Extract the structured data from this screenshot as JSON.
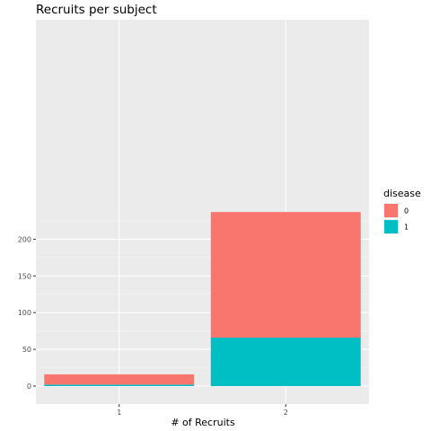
{
  "chart_data": {
    "type": "bar",
    "stacked": true,
    "title": "Recruits per subject",
    "xlabel": "# of Recruits",
    "ylabel": "",
    "categories": [
      "1",
      "2"
    ],
    "series": [
      {
        "name": "0",
        "values": [
          14,
          171
        ]
      },
      {
        "name": "1",
        "values": [
          2,
          66
        ]
      }
    ],
    "ylim": [
      0,
      242
    ],
    "yticks": [
      0,
      50,
      100,
      150,
      200
    ],
    "grid": true,
    "legend": {
      "title": "disease",
      "placement": "right"
    },
    "colors": {
      "0": "#F8766D",
      "1": "#00BFC4",
      "panel": "#EBEBEB",
      "grid": "#FFFFFF"
    }
  }
}
